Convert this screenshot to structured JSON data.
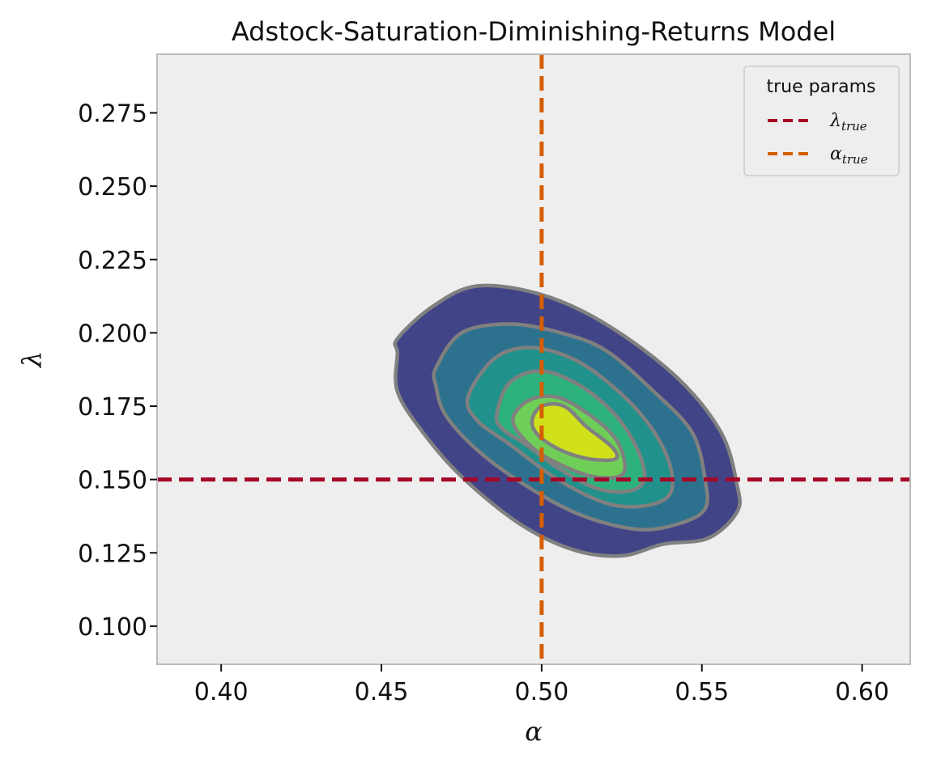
{
  "chart_data": {
    "type": "contour",
    "title": "Adstock-Saturation-Diminishing-Returns Model",
    "xlabel": "α",
    "ylabel": "λ",
    "xlim": [
      0.38,
      0.615
    ],
    "ylim": [
      0.087,
      0.295
    ],
    "xticks": [
      0.4,
      0.45,
      0.5,
      0.55,
      0.6
    ],
    "xtick_labels": [
      "0.40",
      "0.45",
      "0.50",
      "0.55",
      "0.60"
    ],
    "yticks": [
      0.1,
      0.125,
      0.15,
      0.175,
      0.2,
      0.225,
      0.25,
      0.275
    ],
    "ytick_labels": [
      "0.100",
      "0.125",
      "0.150",
      "0.175",
      "0.200",
      "0.225",
      "0.250",
      "0.275"
    ],
    "grid": false,
    "background": "#eeeeee",
    "contour_edge_color": "#808080",
    "contour_levels": [
      {
        "color": "#414487",
        "points": [
          [
            0.455,
            0.198
          ],
          [
            0.466,
            0.209
          ],
          [
            0.48,
            0.216
          ],
          [
            0.5,
            0.213
          ],
          [
            0.52,
            0.203
          ],
          [
            0.542,
            0.185
          ],
          [
            0.556,
            0.166
          ],
          [
            0.561,
            0.148
          ],
          [
            0.561,
            0.139
          ],
          [
            0.552,
            0.13
          ],
          [
            0.538,
            0.128
          ],
          [
            0.525,
            0.124
          ],
          [
            0.51,
            0.126
          ],
          [
            0.493,
            0.135
          ],
          [
            0.475,
            0.151
          ],
          [
            0.463,
            0.166
          ],
          [
            0.455,
            0.18
          ],
          [
            0.455,
            0.193
          ]
        ]
      },
      {
        "color": "#2c728e",
        "points": [
          [
            0.467,
            0.188
          ],
          [
            0.475,
            0.2
          ],
          [
            0.49,
            0.203
          ],
          [
            0.506,
            0.2
          ],
          [
            0.52,
            0.194
          ],
          [
            0.535,
            0.18
          ],
          [
            0.547,
            0.166
          ],
          [
            0.551,
            0.15
          ],
          [
            0.551,
            0.14
          ],
          [
            0.543,
            0.135
          ],
          [
            0.53,
            0.133
          ],
          [
            0.512,
            0.138
          ],
          [
            0.495,
            0.148
          ],
          [
            0.48,
            0.16
          ],
          [
            0.47,
            0.172
          ],
          [
            0.467,
            0.182
          ]
        ]
      },
      {
        "color": "#21918c",
        "points": [
          [
            0.477,
            0.178
          ],
          [
            0.485,
            0.191
          ],
          [
            0.496,
            0.195
          ],
          [
            0.51,
            0.191
          ],
          [
            0.523,
            0.181
          ],
          [
            0.534,
            0.168
          ],
          [
            0.54,
            0.155
          ],
          [
            0.54,
            0.145
          ],
          [
            0.532,
            0.141
          ],
          [
            0.52,
            0.142
          ],
          [
            0.505,
            0.15
          ],
          [
            0.49,
            0.162
          ],
          [
            0.48,
            0.17
          ]
        ]
      },
      {
        "color": "#2db27d",
        "points": [
          [
            0.486,
            0.172
          ],
          [
            0.49,
            0.183
          ],
          [
            0.5,
            0.187
          ],
          [
            0.512,
            0.182
          ],
          [
            0.523,
            0.172
          ],
          [
            0.53,
            0.16
          ],
          [
            0.532,
            0.15
          ],
          [
            0.527,
            0.146
          ],
          [
            0.517,
            0.147
          ],
          [
            0.505,
            0.154
          ],
          [
            0.495,
            0.162
          ],
          [
            0.488,
            0.167
          ]
        ]
      },
      {
        "color": "#6ece58",
        "points": [
          [
            0.491,
            0.17
          ],
          [
            0.496,
            0.177
          ],
          [
            0.505,
            0.178
          ],
          [
            0.515,
            0.172
          ],
          [
            0.523,
            0.164
          ],
          [
            0.526,
            0.155
          ],
          [
            0.524,
            0.151
          ],
          [
            0.516,
            0.151
          ],
          [
            0.506,
            0.155
          ],
          [
            0.497,
            0.161
          ]
        ]
      },
      {
        "color": "#d0e11c",
        "points": [
          [
            0.497,
            0.17
          ],
          [
            0.5,
            0.175
          ],
          [
            0.507,
            0.175
          ],
          [
            0.514,
            0.168
          ],
          [
            0.522,
            0.161
          ],
          [
            0.523,
            0.157
          ],
          [
            0.515,
            0.157
          ],
          [
            0.506,
            0.16
          ],
          [
            0.499,
            0.165
          ]
        ]
      }
    ],
    "reference_lines": [
      {
        "orientation": "horizontal",
        "value": 0.15,
        "color": "#a60628",
        "style": "dashed"
      },
      {
        "orientation": "vertical",
        "value": 0.5,
        "color": "#d55e00",
        "style": "dashed"
      }
    ],
    "legend": {
      "title": "true params",
      "placement": "top-right",
      "entries": [
        {
          "symbol": "λ",
          "subscript": "true",
          "color": "#a60628"
        },
        {
          "symbol": "α",
          "subscript": "true",
          "color": "#d55e00"
        }
      ]
    }
  }
}
